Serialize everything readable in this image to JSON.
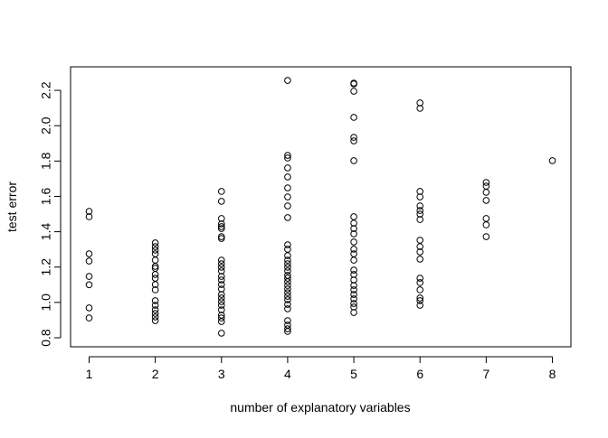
{
  "chart_data": {
    "type": "scatter",
    "xlabel": "number of explanatory variables",
    "ylabel": "test error",
    "xlim": [
      0.72,
      8.28
    ],
    "ylim": [
      0.749,
      2.333
    ],
    "xticks": [
      1,
      2,
      3,
      4,
      5,
      6,
      7,
      8
    ],
    "yticks": [
      0.8,
      {
        "value": 1.0,
        "label": "1.0"
      },
      1.2,
      1.4,
      1.6,
      1.8,
      {
        "value": 2.0,
        "label": "2.0"
      },
      2.2
    ],
    "color": "#000000",
    "x": [
      1,
      1,
      1,
      1,
      1,
      1,
      1,
      1,
      2,
      2,
      2,
      2,
      2,
      2,
      2,
      2,
      2,
      2,
      2,
      2,
      2,
      2,
      2,
      2,
      2,
      3,
      3,
      3,
      3,
      3,
      3,
      3,
      3,
      3,
      3,
      3,
      3,
      3,
      3,
      3,
      3,
      3,
      3,
      3,
      3,
      3,
      3,
      3,
      3,
      3,
      4,
      4,
      4,
      4,
      4,
      4,
      4,
      4,
      4,
      4,
      4,
      4,
      4,
      4,
      4,
      4,
      4,
      4,
      4,
      4,
      4,
      4,
      4,
      4,
      4,
      4,
      4,
      4,
      4,
      4,
      5,
      5,
      5,
      5,
      5,
      5,
      5,
      5,
      5,
      5,
      5,
      5,
      5,
      5,
      5,
      5,
      5,
      5,
      5,
      5,
      5,
      5,
      5,
      5,
      5,
      6,
      6,
      6,
      6,
      6,
      6,
      6,
      6,
      6,
      6,
      6,
      6,
      6,
      6,
      6,
      6,
      6,
      6,
      7,
      7,
      7,
      7,
      7,
      7,
      7,
      8
    ],
    "y": [
      1.515,
      1.485,
      1.275,
      1.234,
      1.147,
      1.1,
      0.969,
      0.912,
      1.337,
      1.316,
      1.296,
      1.275,
      1.239,
      1.204,
      1.193,
      1.158,
      1.137,
      1.101,
      1.071,
      1.01,
      0.984,
      0.958,
      0.938,
      0.918,
      0.897,
      1.628,
      1.572,
      1.475,
      1.444,
      1.429,
      1.418,
      1.372,
      1.362,
      1.239,
      1.219,
      1.199,
      1.178,
      1.147,
      1.127,
      1.101,
      1.076,
      1.045,
      1.025,
      1.004,
      0.984,
      0.958,
      0.928,
      0.912,
      0.892,
      0.826,
      2.256,
      1.832,
      1.817,
      1.761,
      1.71,
      1.648,
      1.597,
      1.546,
      1.48,
      1.326,
      1.301,
      1.265,
      1.239,
      1.219,
      1.199,
      1.178,
      1.153,
      1.137,
      1.117,
      1.096,
      1.076,
      1.055,
      1.035,
      1.015,
      0.989,
      0.964,
      0.897,
      0.872,
      0.851,
      0.836,
      2.241,
      2.236,
      2.195,
      2.047,
      1.934,
      1.914,
      1.802,
      1.485,
      1.449,
      1.418,
      1.388,
      1.342,
      1.301,
      1.275,
      1.239,
      1.183,
      1.158,
      1.127,
      1.096,
      1.071,
      1.045,
      1.02,
      0.994,
      0.974,
      0.943,
      2.129,
      2.098,
      1.628,
      1.597,
      1.546,
      1.52,
      1.5,
      1.469,
      1.352,
      1.316,
      1.286,
      1.245,
      1.137,
      1.112,
      1.071,
      1.025,
      1.01,
      0.984,
      1.679,
      1.658,
      1.623,
      1.577,
      1.475,
      1.439,
      1.372,
      1.802
    ]
  }
}
